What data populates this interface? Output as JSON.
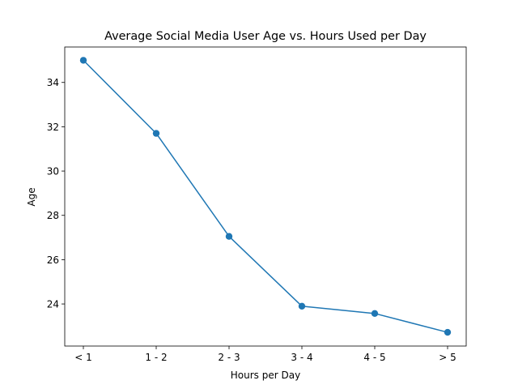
{
  "chart_data": {
    "type": "line",
    "title": "Average Social Media User Age vs. Hours Used per Day",
    "xlabel": "Hours per Day",
    "ylabel": "Age",
    "categories": [
      "< 1",
      "1 - 2",
      "2 - 3",
      "3 - 4",
      "4 - 5",
      "> 5"
    ],
    "series": [
      {
        "values": [
          35.0,
          31.7,
          27.05,
          23.9,
          23.57,
          22.72
        ]
      }
    ],
    "yticks": [
      24,
      26,
      28,
      30,
      32,
      34
    ],
    "ylim": [
      22.1,
      35.6
    ],
    "grid": false,
    "legend": "none",
    "color": "#1f77b4"
  }
}
